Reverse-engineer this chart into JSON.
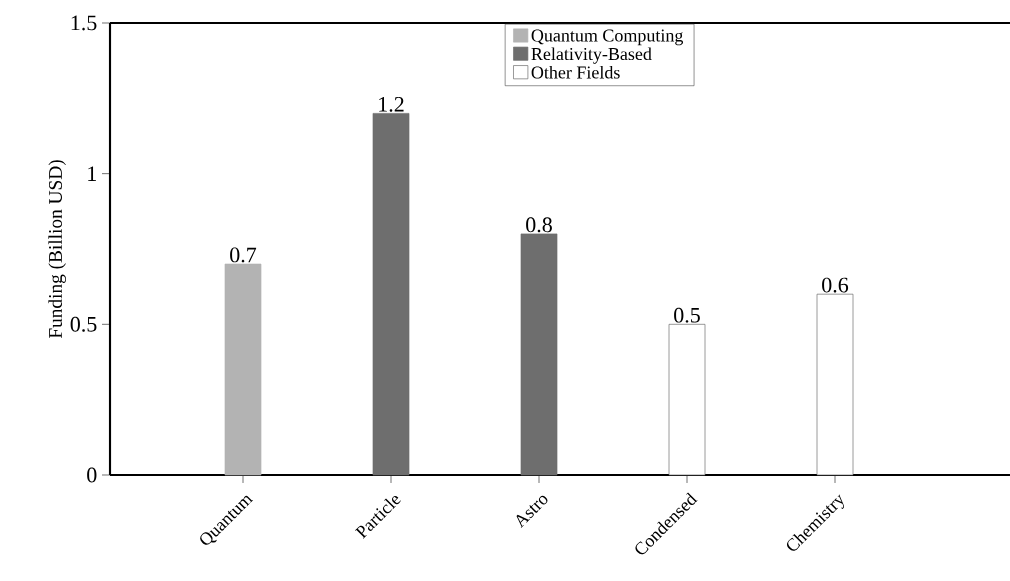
{
  "chart_data": {
    "type": "bar",
    "ylabel": "Funding (Billion USD)",
    "categories": [
      "Quantum",
      "Particle",
      "Astro",
      "Condensed",
      "Chemistry"
    ],
    "series": [
      {
        "name": "Quantum Computing",
        "color": "#b3b3b3",
        "values": [
          0.7,
          null,
          null,
          null,
          null
        ]
      },
      {
        "name": "Relativity-Based",
        "color": "#6e6e6e",
        "values": [
          null,
          1.2,
          0.8,
          null,
          null
        ]
      },
      {
        "name": "Other Fields",
        "color": "#ffffff",
        "values": [
          null,
          null,
          null,
          0.5,
          0.6
        ]
      }
    ],
    "ylim": [
      0,
      1.5
    ],
    "yticks": [
      0,
      0.5,
      1,
      1.5
    ],
    "data_labels": true,
    "legend": "top",
    "grid": false
  }
}
